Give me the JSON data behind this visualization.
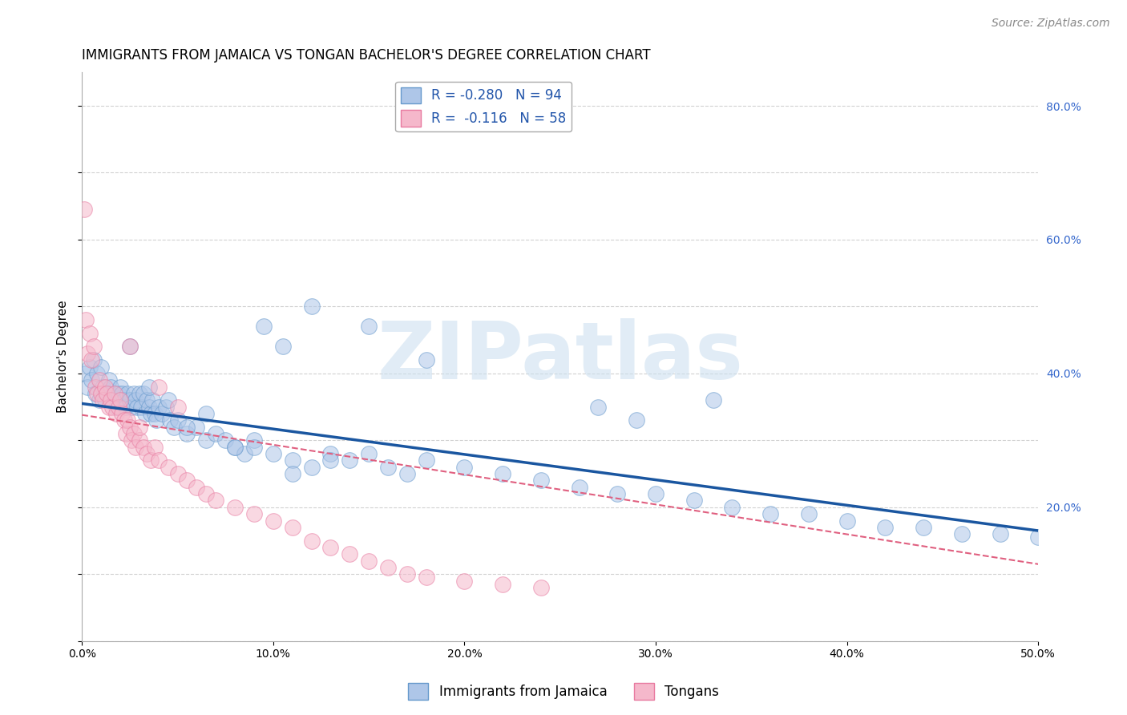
{
  "title": "IMMIGRANTS FROM JAMAICA VS TONGAN BACHELOR'S DEGREE CORRELATION CHART",
  "source": "Source: ZipAtlas.com",
  "ylabel": "Bachelor's Degree",
  "xlim": [
    0.0,
    0.5
  ],
  "ylim": [
    0.0,
    0.85
  ],
  "legend_labels": [
    "Immigrants from Jamaica",
    "Tongans"
  ],
  "legend_R": [
    -0.28,
    -0.116
  ],
  "legend_N": [
    94,
    58
  ],
  "watermark": "ZIPatlas",
  "jamaica_color": "#aec6e8",
  "tongan_color": "#f5b8cb",
  "jamaica_edge_color": "#6699cc",
  "tongan_edge_color": "#e87aa0",
  "jamaica_line_color": "#1a56a0",
  "tongan_line_color": "#e06080",
  "jamaica_scatter_x": [
    0.002,
    0.003,
    0.004,
    0.005,
    0.006,
    0.007,
    0.008,
    0.009,
    0.01,
    0.011,
    0.012,
    0.013,
    0.014,
    0.015,
    0.016,
    0.017,
    0.018,
    0.019,
    0.02,
    0.021,
    0.022,
    0.023,
    0.024,
    0.025,
    0.026,
    0.027,
    0.028,
    0.029,
    0.03,
    0.031,
    0.032,
    0.033,
    0.034,
    0.035,
    0.036,
    0.037,
    0.038,
    0.039,
    0.04,
    0.042,
    0.044,
    0.046,
    0.048,
    0.05,
    0.055,
    0.06,
    0.065,
    0.07,
    0.075,
    0.08,
    0.085,
    0.09,
    0.1,
    0.11,
    0.12,
    0.13,
    0.14,
    0.15,
    0.16,
    0.17,
    0.18,
    0.2,
    0.22,
    0.24,
    0.26,
    0.28,
    0.3,
    0.32,
    0.34,
    0.36,
    0.38,
    0.4,
    0.42,
    0.44,
    0.46,
    0.48,
    0.5,
    0.33,
    0.29,
    0.27,
    0.095,
    0.055,
    0.105,
    0.12,
    0.15,
    0.18,
    0.025,
    0.035,
    0.045,
    0.065,
    0.08,
    0.09,
    0.11,
    0.13
  ],
  "jamaica_scatter_y": [
    0.4,
    0.38,
    0.41,
    0.39,
    0.42,
    0.37,
    0.4,
    0.36,
    0.41,
    0.38,
    0.36,
    0.37,
    0.39,
    0.38,
    0.36,
    0.37,
    0.35,
    0.37,
    0.38,
    0.37,
    0.36,
    0.35,
    0.37,
    0.36,
    0.35,
    0.37,
    0.36,
    0.35,
    0.37,
    0.35,
    0.37,
    0.34,
    0.36,
    0.35,
    0.34,
    0.36,
    0.34,
    0.33,
    0.35,
    0.34,
    0.35,
    0.33,
    0.32,
    0.33,
    0.31,
    0.32,
    0.3,
    0.31,
    0.3,
    0.29,
    0.28,
    0.3,
    0.28,
    0.27,
    0.26,
    0.28,
    0.27,
    0.28,
    0.26,
    0.25,
    0.27,
    0.26,
    0.25,
    0.24,
    0.23,
    0.22,
    0.22,
    0.21,
    0.2,
    0.19,
    0.19,
    0.18,
    0.17,
    0.17,
    0.16,
    0.16,
    0.155,
    0.36,
    0.33,
    0.35,
    0.47,
    0.32,
    0.44,
    0.5,
    0.47,
    0.42,
    0.44,
    0.38,
    0.36,
    0.34,
    0.29,
    0.29,
    0.25,
    0.27
  ],
  "tongan_scatter_x": [
    0.001,
    0.002,
    0.003,
    0.004,
    0.005,
    0.006,
    0.007,
    0.008,
    0.009,
    0.01,
    0.011,
    0.012,
    0.013,
    0.014,
    0.015,
    0.016,
    0.017,
    0.018,
    0.019,
    0.02,
    0.021,
    0.022,
    0.023,
    0.024,
    0.025,
    0.026,
    0.027,
    0.028,
    0.03,
    0.032,
    0.034,
    0.036,
    0.038,
    0.04,
    0.045,
    0.05,
    0.055,
    0.06,
    0.065,
    0.07,
    0.08,
    0.09,
    0.1,
    0.11,
    0.12,
    0.13,
    0.14,
    0.15,
    0.16,
    0.17,
    0.18,
    0.2,
    0.22,
    0.24,
    0.025,
    0.03,
    0.04,
    0.05
  ],
  "tongan_scatter_y": [
    0.645,
    0.48,
    0.43,
    0.46,
    0.42,
    0.44,
    0.38,
    0.37,
    0.39,
    0.37,
    0.36,
    0.38,
    0.37,
    0.35,
    0.36,
    0.35,
    0.37,
    0.34,
    0.35,
    0.36,
    0.34,
    0.33,
    0.31,
    0.33,
    0.32,
    0.3,
    0.31,
    0.29,
    0.3,
    0.29,
    0.28,
    0.27,
    0.29,
    0.27,
    0.26,
    0.25,
    0.24,
    0.23,
    0.22,
    0.21,
    0.2,
    0.19,
    0.18,
    0.17,
    0.15,
    0.14,
    0.13,
    0.12,
    0.11,
    0.1,
    0.095,
    0.09,
    0.085,
    0.08,
    0.44,
    0.32,
    0.38,
    0.35
  ],
  "jamaica_trend_x": [
    0.0,
    0.5
  ],
  "jamaica_trend_y": [
    0.355,
    0.165
  ],
  "tongan_trend_x": [
    0.0,
    0.5
  ],
  "tongan_trend_y": [
    0.338,
    0.115
  ],
  "grid_color": "#cccccc",
  "background_color": "#ffffff",
  "title_fontsize": 12,
  "axis_label_fontsize": 11,
  "tick_fontsize": 10,
  "legend_fontsize": 12,
  "source_fontsize": 10
}
